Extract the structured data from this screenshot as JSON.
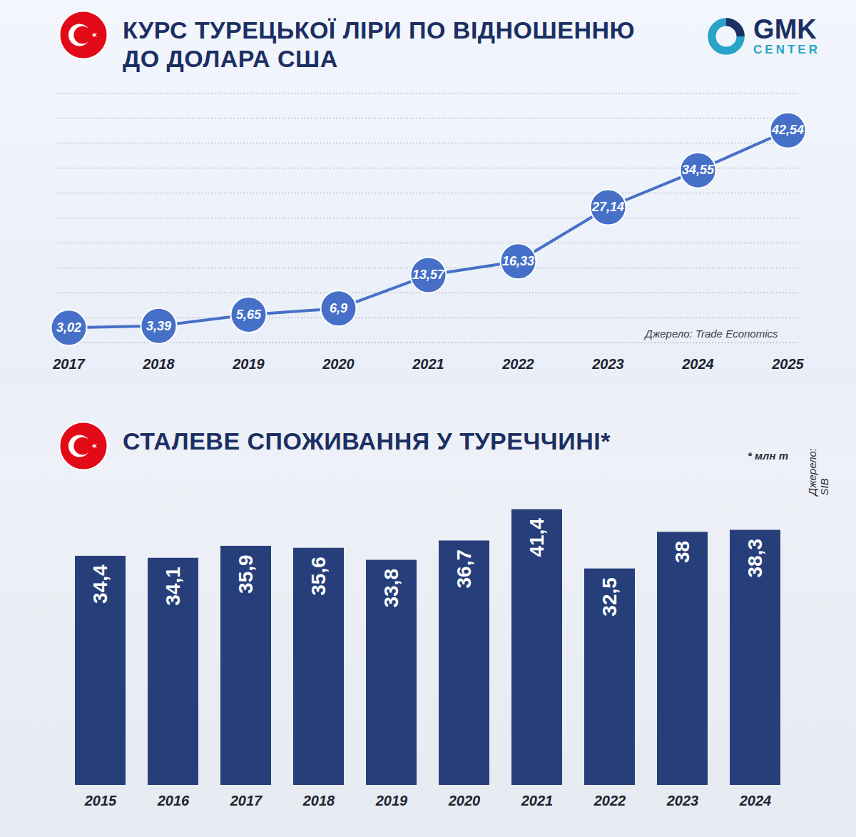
{
  "brand": [
    "GMK",
    "CENTER"
  ],
  "chart_data": [
    {
      "type": "line",
      "title": "КУРС ТУРЕЦЬКОЇ ЛІРИ ПО ВІДНОШЕННЮ ДО ДОЛАРА США",
      "categories": [
        "2017",
        "2018",
        "2019",
        "2020",
        "2021",
        "2022",
        "2023",
        "2024",
        "2025"
      ],
      "values": [
        3.02,
        3.39,
        5.65,
        6.9,
        13.57,
        16.33,
        27.14,
        34.55,
        42.54
      ],
      "value_labels": [
        "3,02",
        "3,39",
        "5,65",
        "6,9",
        "13,57",
        "16,33",
        "27,14",
        "34,55",
        "42,54"
      ],
      "data_labels": true,
      "color": "#4670c8",
      "marker": "circle",
      "ylim": [
        0,
        50
      ],
      "yticks": [
        0,
        5,
        10,
        15,
        20,
        25,
        30,
        35,
        40,
        45,
        50
      ],
      "grid": true,
      "tick_labels": "x",
      "annotations": [
        "Джерело: Trade Economics"
      ]
    },
    {
      "type": "bar",
      "title": "СТАЛЕВЕ СПОЖИВАННЯ У ТУРЕЧЧИНІ*",
      "categories": [
        "2015",
        "2016",
        "2017",
        "2018",
        "2019",
        "2020",
        "2021",
        "2022",
        "2023",
        "2024"
      ],
      "values": [
        34.4,
        34.1,
        35.9,
        35.6,
        33.8,
        36.7,
        41.4,
        32.5,
        38,
        38.3
      ],
      "value_labels": [
        "34,4",
        "34,1",
        "35,9",
        "35,6",
        "33,8",
        "36,7",
        "41,4",
        "32,5",
        "38",
        "38,3"
      ],
      "data_labels": true,
      "color": "#263f7a",
      "ylim": [
        0,
        45
      ],
      "grid": false,
      "tick_labels": "x",
      "annotations": [
        "* млн т",
        "Джерело: SIB"
      ]
    }
  ]
}
